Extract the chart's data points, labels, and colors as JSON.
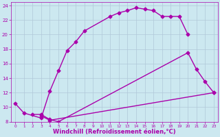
{
  "xlabel": "Windchill (Refroidissement éolien,°C)",
  "xlim": [
    -0.5,
    23.5
  ],
  "ylim": [
    8,
    24.5
  ],
  "xticks": [
    0,
    1,
    2,
    3,
    4,
    5,
    6,
    7,
    8,
    9,
    10,
    11,
    12,
    13,
    14,
    15,
    16,
    17,
    18,
    19,
    20,
    21,
    22,
    23
  ],
  "yticks": [
    8,
    10,
    12,
    14,
    16,
    18,
    20,
    22,
    24
  ],
  "background_color": "#cce8f0",
  "grid_color": "#b0c8d8",
  "line_color": "#aa00aa",
  "curve1_x": [
    0,
    1,
    3,
    4,
    5,
    6,
    7,
    8,
    11,
    12,
    13,
    14,
    15,
    16,
    17,
    18,
    19,
    20
  ],
  "curve1_y": [
    10.5,
    9.2,
    8.5,
    12.2,
    15.0,
    17.8,
    19.0,
    20.5,
    22.5,
    23.0,
    23.3,
    23.7,
    23.5,
    23.3,
    22.5,
    22.5,
    22.5,
    20.0
  ],
  "curve2_x": [
    2,
    3,
    4,
    5,
    20,
    21,
    22,
    23
  ],
  "curve2_y": [
    9.0,
    9.0,
    8.3,
    8.0,
    17.5,
    15.2,
    13.5,
    12.0
  ],
  "curve3_x": [
    3,
    4,
    23
  ],
  "curve3_y": [
    8.8,
    8.2,
    12.0
  ],
  "marker": "D",
  "markersize": 2.5,
  "linewidth": 1.0,
  "tick_fontsize": 5.0,
  "label_fontsize": 6.0
}
